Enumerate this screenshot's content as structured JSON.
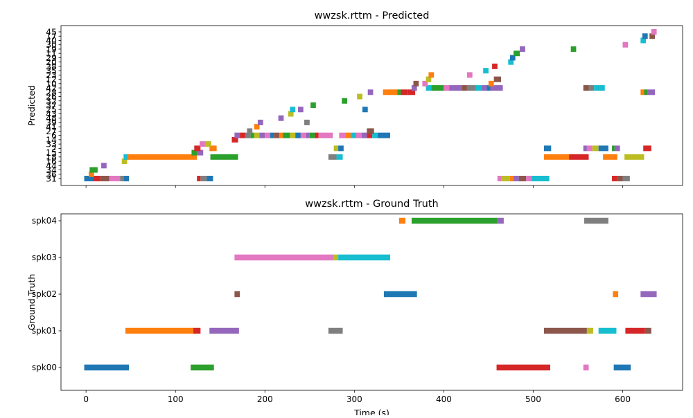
{
  "chart_data": [
    {
      "type": "timeline",
      "title": "wwzsk.rttm - Predicted",
      "ylabel": "Predicted",
      "xlim": [
        -28,
        667
      ],
      "xticks": [
        0,
        100,
        200,
        300,
        400,
        500,
        600
      ],
      "show_x_tick_labels": false,
      "grid": false,
      "rows": [
        "31",
        "36",
        "34",
        "44",
        "16",
        "18",
        "15",
        "2",
        "33",
        "14",
        "6",
        "27",
        "41",
        "39",
        "48",
        "43",
        "25",
        "37",
        "32",
        "26",
        "28",
        "42",
        "10",
        "12",
        "23",
        "35",
        "38",
        "20",
        "29",
        "11",
        "19",
        "30",
        "40",
        "17",
        "45"
      ],
      "segments": [
        {
          "row": "31",
          "start": -2,
          "end": 8,
          "color": "#1f77b4"
        },
        {
          "row": "31",
          "start": 8,
          "end": 16,
          "color": "#d62728"
        },
        {
          "row": "31",
          "start": 16,
          "end": 26,
          "color": "#8c564b"
        },
        {
          "row": "31",
          "start": 26,
          "end": 38,
          "color": "#e377c2"
        },
        {
          "row": "31",
          "start": 38,
          "end": 42,
          "color": "#7f7f7f"
        },
        {
          "row": "31",
          "start": 42,
          "end": 48,
          "color": "#1f77b4"
        },
        {
          "row": "31",
          "start": 124,
          "end": 128,
          "color": "#d62728"
        },
        {
          "row": "31",
          "start": 128,
          "end": 135,
          "color": "#7f7f7f"
        },
        {
          "row": "31",
          "start": 135,
          "end": 142,
          "color": "#1f77b4"
        },
        {
          "row": "31",
          "start": 460,
          "end": 464,
          "color": "#e377c2"
        },
        {
          "row": "31",
          "start": 464,
          "end": 474,
          "color": "#bcbd22"
        },
        {
          "row": "31",
          "start": 474,
          "end": 478,
          "color": "#ff7f0e"
        },
        {
          "row": "31",
          "start": 478,
          "end": 484,
          "color": "#9467bd"
        },
        {
          "row": "31",
          "start": 484,
          "end": 492,
          "color": "#8c564b"
        },
        {
          "row": "31",
          "start": 492,
          "end": 498,
          "color": "#e377c2"
        },
        {
          "row": "31",
          "start": 498,
          "end": 518,
          "color": "#17becf"
        },
        {
          "row": "31",
          "start": 588,
          "end": 594,
          "color": "#d62728"
        },
        {
          "row": "31",
          "start": 594,
          "end": 600,
          "color": "#8c564b"
        },
        {
          "row": "31",
          "start": 600,
          "end": 608,
          "color": "#7f7f7f"
        },
        {
          "row": "36",
          "start": 3,
          "end": 9,
          "color": "#ff7f0e"
        },
        {
          "row": "34",
          "start": 4,
          "end": 13,
          "color": "#2ca02c"
        },
        {
          "row": "44",
          "start": 17,
          "end": 23,
          "color": "#9467bd"
        },
        {
          "row": "16",
          "start": 40,
          "end": 46,
          "color": "#bcbd22"
        },
        {
          "row": "18",
          "start": 42,
          "end": 48,
          "color": "#17becf"
        },
        {
          "row": "18",
          "start": 46,
          "end": 124,
          "color": "#ff7f0e"
        },
        {
          "row": "18",
          "start": 139,
          "end": 170,
          "color": "#2ca02c"
        },
        {
          "row": "18",
          "start": 271,
          "end": 280,
          "color": "#7f7f7f"
        },
        {
          "row": "18",
          "start": 280,
          "end": 287,
          "color": "#17becf"
        },
        {
          "row": "18",
          "start": 512,
          "end": 540,
          "color": "#ff7f0e"
        },
        {
          "row": "18",
          "start": 540,
          "end": 562,
          "color": "#d62728"
        },
        {
          "row": "18",
          "start": 578,
          "end": 594,
          "color": "#ff7f0e"
        },
        {
          "row": "18",
          "start": 602,
          "end": 624,
          "color": "#bcbd22"
        },
        {
          "row": "15",
          "start": 118,
          "end": 124,
          "color": "#2ca02c"
        },
        {
          "row": "15",
          "start": 124,
          "end": 131,
          "color": "#9467bd"
        },
        {
          "row": "2",
          "start": 121,
          "end": 128,
          "color": "#d62728"
        },
        {
          "row": "2",
          "start": 138,
          "end": 146,
          "color": "#ff7f0e"
        },
        {
          "row": "2",
          "start": 277,
          "end": 282,
          "color": "#bcbd22"
        },
        {
          "row": "2",
          "start": 282,
          "end": 288,
          "color": "#1f77b4"
        },
        {
          "row": "2",
          "start": 512,
          "end": 520,
          "color": "#1f77b4"
        },
        {
          "row": "2",
          "start": 556,
          "end": 560,
          "color": "#9467bd"
        },
        {
          "row": "2",
          "start": 560,
          "end": 566,
          "color": "#e377c2"
        },
        {
          "row": "2",
          "start": 566,
          "end": 573,
          "color": "#bcbd22"
        },
        {
          "row": "2",
          "start": 573,
          "end": 584,
          "color": "#1f77b4"
        },
        {
          "row": "2",
          "start": 588,
          "end": 591,
          "color": "#2ca02c"
        },
        {
          "row": "2",
          "start": 591,
          "end": 597,
          "color": "#9467bd"
        },
        {
          "row": "2",
          "start": 623,
          "end": 632,
          "color": "#d62728"
        },
        {
          "row": "33",
          "start": 127,
          "end": 134,
          "color": "#e377c2"
        },
        {
          "row": "33",
          "start": 133,
          "end": 140,
          "color": "#bcbd22"
        },
        {
          "row": "14",
          "start": 163,
          "end": 170,
          "color": "#d62728"
        },
        {
          "row": "6",
          "start": 166,
          "end": 172,
          "color": "#9467bd"
        },
        {
          "row": "6",
          "start": 172,
          "end": 178,
          "color": "#d62728"
        },
        {
          "row": "6",
          "start": 178,
          "end": 184,
          "color": "#7f7f7f"
        },
        {
          "row": "6",
          "start": 184,
          "end": 188,
          "color": "#2ca02c"
        },
        {
          "row": "6",
          "start": 188,
          "end": 194,
          "color": "#bcbd22"
        },
        {
          "row": "6",
          "start": 194,
          "end": 200,
          "color": "#9467bd"
        },
        {
          "row": "6",
          "start": 200,
          "end": 206,
          "color": "#e377c2"
        },
        {
          "row": "6",
          "start": 206,
          "end": 210,
          "color": "#1f77b4"
        },
        {
          "row": "6",
          "start": 210,
          "end": 216,
          "color": "#8c564b"
        },
        {
          "row": "6",
          "start": 216,
          "end": 220,
          "color": "#ff7f0e"
        },
        {
          "row": "6",
          "start": 220,
          "end": 228,
          "color": "#2ca02c"
        },
        {
          "row": "6",
          "start": 228,
          "end": 234,
          "color": "#bcbd22"
        },
        {
          "row": "6",
          "start": 234,
          "end": 240,
          "color": "#1f77b4"
        },
        {
          "row": "6",
          "start": 240,
          "end": 246,
          "color": "#e377c2"
        },
        {
          "row": "6",
          "start": 246,
          "end": 250,
          "color": "#9467bd"
        },
        {
          "row": "6",
          "start": 250,
          "end": 256,
          "color": "#2ca02c"
        },
        {
          "row": "6",
          "start": 256,
          "end": 260,
          "color": "#d62728"
        },
        {
          "row": "6",
          "start": 260,
          "end": 276,
          "color": "#e377c2"
        },
        {
          "row": "6",
          "start": 283,
          "end": 290,
          "color": "#e377c2"
        },
        {
          "row": "6",
          "start": 290,
          "end": 296,
          "color": "#ff7f0e"
        },
        {
          "row": "6",
          "start": 296,
          "end": 302,
          "color": "#17becf"
        },
        {
          "row": "6",
          "start": 302,
          "end": 308,
          "color": "#e377c2"
        },
        {
          "row": "6",
          "start": 308,
          "end": 314,
          "color": "#9467bd"
        },
        {
          "row": "6",
          "start": 314,
          "end": 320,
          "color": "#d62728"
        },
        {
          "row": "6",
          "start": 320,
          "end": 326,
          "color": "#17becf"
        },
        {
          "row": "6",
          "start": 326,
          "end": 340,
          "color": "#1f77b4"
        },
        {
          "row": "27",
          "start": 180,
          "end": 186,
          "color": "#7f7f7f"
        },
        {
          "row": "27",
          "start": 314,
          "end": 322,
          "color": "#8c564b"
        },
        {
          "row": "41",
          "start": 188,
          "end": 194,
          "color": "#ff7f0e"
        },
        {
          "row": "39",
          "start": 192,
          "end": 198,
          "color": "#9467bd"
        },
        {
          "row": "39",
          "start": 244,
          "end": 250,
          "color": "#7f7f7f"
        },
        {
          "row": "48",
          "start": 215,
          "end": 221,
          "color": "#9467bd"
        },
        {
          "row": "43",
          "start": 226,
          "end": 232,
          "color": "#bcbd22"
        },
        {
          "row": "25",
          "start": 228,
          "end": 234,
          "color": "#17becf"
        },
        {
          "row": "25",
          "start": 237,
          "end": 243,
          "color": "#9467bd"
        },
        {
          "row": "25",
          "start": 309,
          "end": 315,
          "color": "#1f77b4"
        },
        {
          "row": "37",
          "start": 251,
          "end": 257,
          "color": "#2ca02c"
        },
        {
          "row": "32",
          "start": 286,
          "end": 292,
          "color": "#2ca02c"
        },
        {
          "row": "26",
          "start": 303,
          "end": 309,
          "color": "#bcbd22"
        },
        {
          "row": "28",
          "start": 315,
          "end": 321,
          "color": "#9467bd"
        },
        {
          "row": "28",
          "start": 332,
          "end": 348,
          "color": "#ff7f0e"
        },
        {
          "row": "28",
          "start": 348,
          "end": 352,
          "color": "#2ca02c"
        },
        {
          "row": "28",
          "start": 352,
          "end": 360,
          "color": "#d62728"
        },
        {
          "row": "28",
          "start": 360,
          "end": 368,
          "color": "#d62728"
        },
        {
          "row": "28",
          "start": 620,
          "end": 624,
          "color": "#ff7f0e"
        },
        {
          "row": "28",
          "start": 624,
          "end": 628,
          "color": "#2ca02c"
        },
        {
          "row": "28",
          "start": 628,
          "end": 636,
          "color": "#9467bd"
        },
        {
          "row": "42",
          "start": 364,
          "end": 370,
          "color": "#9467bd"
        },
        {
          "row": "42",
          "start": 380,
          "end": 386,
          "color": "#17becf"
        },
        {
          "row": "42",
          "start": 386,
          "end": 390,
          "color": "#2ca02c"
        },
        {
          "row": "42",
          "start": 390,
          "end": 400,
          "color": "#2ca02c"
        },
        {
          "row": "42",
          "start": 400,
          "end": 406,
          "color": "#e377c2"
        },
        {
          "row": "42",
          "start": 406,
          "end": 420,
          "color": "#9467bd"
        },
        {
          "row": "42",
          "start": 420,
          "end": 426,
          "color": "#8c564b"
        },
        {
          "row": "42",
          "start": 426,
          "end": 436,
          "color": "#7f7f7f"
        },
        {
          "row": "42",
          "start": 436,
          "end": 442,
          "color": "#17becf"
        },
        {
          "row": "42",
          "start": 442,
          "end": 448,
          "color": "#9467bd"
        },
        {
          "row": "42",
          "start": 448,
          "end": 452,
          "color": "#1f77b4"
        },
        {
          "row": "42",
          "start": 452,
          "end": 466,
          "color": "#9467bd"
        },
        {
          "row": "42",
          "start": 556,
          "end": 562,
          "color": "#8c564b"
        },
        {
          "row": "42",
          "start": 562,
          "end": 568,
          "color": "#7f7f7f"
        },
        {
          "row": "42",
          "start": 568,
          "end": 580,
          "color": "#17becf"
        },
        {
          "row": "10",
          "start": 366,
          "end": 372,
          "color": "#8c564b"
        },
        {
          "row": "10",
          "start": 376,
          "end": 382,
          "color": "#e377c2"
        },
        {
          "row": "10",
          "start": 450,
          "end": 456,
          "color": "#ff7f0e"
        },
        {
          "row": "12",
          "start": 380,
          "end": 386,
          "color": "#bcbd22"
        },
        {
          "row": "12",
          "start": 456,
          "end": 464,
          "color": "#8c564b"
        },
        {
          "row": "23",
          "start": 383,
          "end": 389,
          "color": "#ff7f0e"
        },
        {
          "row": "23",
          "start": 426,
          "end": 432,
          "color": "#e377c2"
        },
        {
          "row": "35",
          "start": 444,
          "end": 450,
          "color": "#17becf"
        },
        {
          "row": "38",
          "start": 454,
          "end": 460,
          "color": "#d62728"
        },
        {
          "row": "20",
          "start": 472,
          "end": 478,
          "color": "#17becf"
        },
        {
          "row": "29",
          "start": 474,
          "end": 480,
          "color": "#1f77b4"
        },
        {
          "row": "11",
          "start": 478,
          "end": 485,
          "color": "#2ca02c"
        },
        {
          "row": "19",
          "start": 485,
          "end": 491,
          "color": "#9467bd"
        },
        {
          "row": "19",
          "start": 542,
          "end": 548,
          "color": "#2ca02c"
        },
        {
          "row": "30",
          "start": 600,
          "end": 606,
          "color": "#e377c2"
        },
        {
          "row": "40",
          "start": 620,
          "end": 626,
          "color": "#17becf"
        },
        {
          "row": "17",
          "start": 622,
          "end": 628,
          "color": "#1f77b4"
        },
        {
          "row": "17",
          "start": 630,
          "end": 636,
          "color": "#8c564b"
        },
        {
          "row": "45",
          "start": 632,
          "end": 638,
          "color": "#e377c2"
        }
      ]
    },
    {
      "type": "timeline",
      "title": "wwzsk.rttm - Ground Truth",
      "xlabel": "Time (s)",
      "ylabel": "Ground Truth",
      "xlim": [
        -28,
        667
      ],
      "xticks": [
        0,
        100,
        200,
        300,
        400,
        500,
        600
      ],
      "show_x_tick_labels": true,
      "grid": false,
      "rows": [
        "spk00",
        "spk01",
        "spk02",
        "spk03",
        "spk04"
      ],
      "segments": [
        {
          "row": "spk00",
          "start": -2,
          "end": 48,
          "color": "#1f77b4"
        },
        {
          "row": "spk00",
          "start": 117,
          "end": 143,
          "color": "#2ca02c"
        },
        {
          "row": "spk00",
          "start": 459,
          "end": 519,
          "color": "#d62728"
        },
        {
          "row": "spk00",
          "start": 556,
          "end": 562,
          "color": "#e377c2"
        },
        {
          "row": "spk00",
          "start": 590,
          "end": 609,
          "color": "#1f77b4"
        },
        {
          "row": "spk01",
          "start": 44,
          "end": 120,
          "color": "#ff7f0e"
        },
        {
          "row": "spk01",
          "start": 120,
          "end": 128,
          "color": "#d62728"
        },
        {
          "row": "spk01",
          "start": 138,
          "end": 171,
          "color": "#9467bd"
        },
        {
          "row": "spk01",
          "start": 271,
          "end": 287,
          "color": "#7f7f7f"
        },
        {
          "row": "spk01",
          "start": 512,
          "end": 560,
          "color": "#8c564b"
        },
        {
          "row": "spk01",
          "start": 560,
          "end": 567,
          "color": "#bcbd22"
        },
        {
          "row": "spk01",
          "start": 573,
          "end": 593,
          "color": "#17becf"
        },
        {
          "row": "spk01",
          "start": 603,
          "end": 625,
          "color": "#d62728"
        },
        {
          "row": "spk01",
          "start": 625,
          "end": 632,
          "color": "#8c564b"
        },
        {
          "row": "spk02",
          "start": 166,
          "end": 172,
          "color": "#8c564b"
        },
        {
          "row": "spk02",
          "start": 333,
          "end": 370,
          "color": "#1f77b4"
        },
        {
          "row": "spk02",
          "start": 589,
          "end": 595,
          "color": "#ff7f0e"
        },
        {
          "row": "spk02",
          "start": 620,
          "end": 638,
          "color": "#9467bd"
        },
        {
          "row": "spk03",
          "start": 166,
          "end": 277,
          "color": "#e377c2"
        },
        {
          "row": "spk03",
          "start": 277,
          "end": 282,
          "color": "#bcbd22"
        },
        {
          "row": "spk03",
          "start": 282,
          "end": 340,
          "color": "#17becf"
        },
        {
          "row": "spk04",
          "start": 350,
          "end": 357,
          "color": "#ff7f0e"
        },
        {
          "row": "spk04",
          "start": 364,
          "end": 460,
          "color": "#2ca02c"
        },
        {
          "row": "spk04",
          "start": 460,
          "end": 467,
          "color": "#9467bd"
        },
        {
          "row": "spk04",
          "start": 557,
          "end": 584,
          "color": "#7f7f7f"
        }
      ]
    }
  ]
}
